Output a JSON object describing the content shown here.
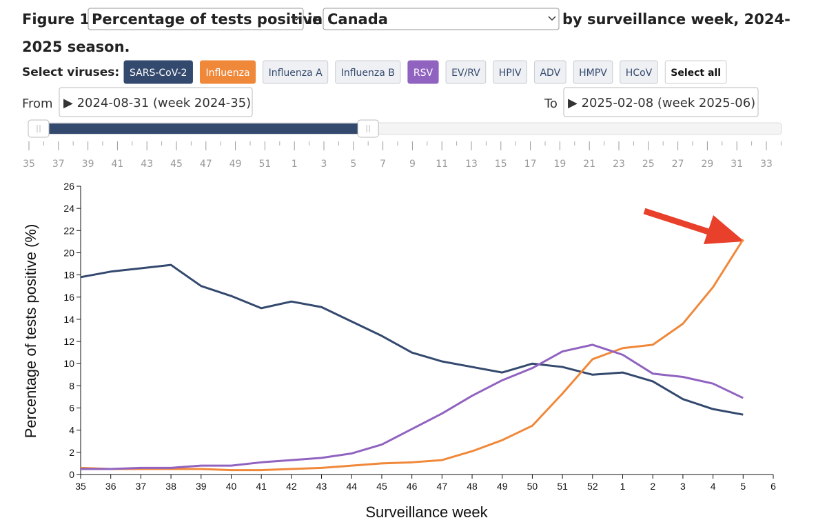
{
  "header": {
    "figure": "Figure 1:",
    "measure": "Percentage of tests positive",
    "joiner": "in",
    "region": "Canada",
    "title_end_line1": "by surveillance week, 2024-",
    "title_end_line2": "2025 season."
  },
  "controls": {
    "select_label": "Select viruses:",
    "virus_buttons": [
      "SARS-CoV-2",
      "Influenza",
      "Influenza A",
      "Influenza B",
      "RSV",
      "EV/RV",
      "HPIV",
      "ADV",
      "HMPV",
      "HCoV"
    ],
    "select_all": "Select all",
    "from_label": "From",
    "from_value": "▶ 2024-08-31 (week 2024-35)",
    "to_label": "To",
    "to_value": "▶ 2025-02-08 (week 2025-06)",
    "slider_labels": [
      35,
      37,
      39,
      41,
      43,
      45,
      47,
      49,
      51,
      1,
      3,
      5,
      7,
      9,
      11,
      13,
      15,
      17,
      19,
      21,
      23,
      25,
      27,
      29,
      31,
      33
    ]
  },
  "chart_data": {
    "type": "line",
    "xlabel": "Surveillance week",
    "ylabel": "Percentage of tests positive (%)",
    "categories": [
      "35",
      "36",
      "37",
      "38",
      "39",
      "40",
      "41",
      "42",
      "43",
      "44",
      "45",
      "46",
      "47",
      "48",
      "49",
      "50",
      "51",
      "52",
      "1",
      "2",
      "3",
      "4",
      "5",
      "6"
    ],
    "series": [
      {
        "name": "SARS-CoV-2",
        "color": "#34496e",
        "values": [
          17.8,
          18.3,
          18.6,
          18.9,
          17.0,
          16.1,
          15.0,
          15.6,
          15.1,
          13.8,
          12.5,
          11.0,
          10.2,
          9.7,
          9.2,
          10.0,
          9.7,
          9.0,
          9.2,
          8.4,
          6.8,
          5.9,
          5.4,
          null
        ]
      },
      {
        "name": "Influenza",
        "color": "#f0883a",
        "values": [
          0.6,
          0.5,
          0.5,
          0.5,
          0.5,
          0.4,
          0.4,
          0.5,
          0.6,
          0.8,
          1.0,
          1.1,
          1.3,
          2.1,
          3.1,
          4.4,
          7.3,
          10.4,
          11.4,
          11.7,
          13.6,
          16.9,
          21.2,
          null
        ]
      },
      {
        "name": "RSV",
        "color": "#9063c0",
        "values": [
          0.5,
          0.5,
          0.6,
          0.6,
          0.8,
          0.8,
          1.1,
          1.3,
          1.5,
          1.9,
          2.7,
          4.1,
          5.5,
          7.1,
          8.5,
          9.6,
          11.1,
          11.7,
          10.8,
          9.1,
          8.8,
          8.2,
          6.9,
          null
        ]
      }
    ],
    "ylim": [
      0,
      26
    ],
    "yticks": [
      0,
      2,
      4,
      6,
      8,
      10,
      12,
      14,
      16,
      18,
      20,
      22,
      24,
      26
    ]
  }
}
